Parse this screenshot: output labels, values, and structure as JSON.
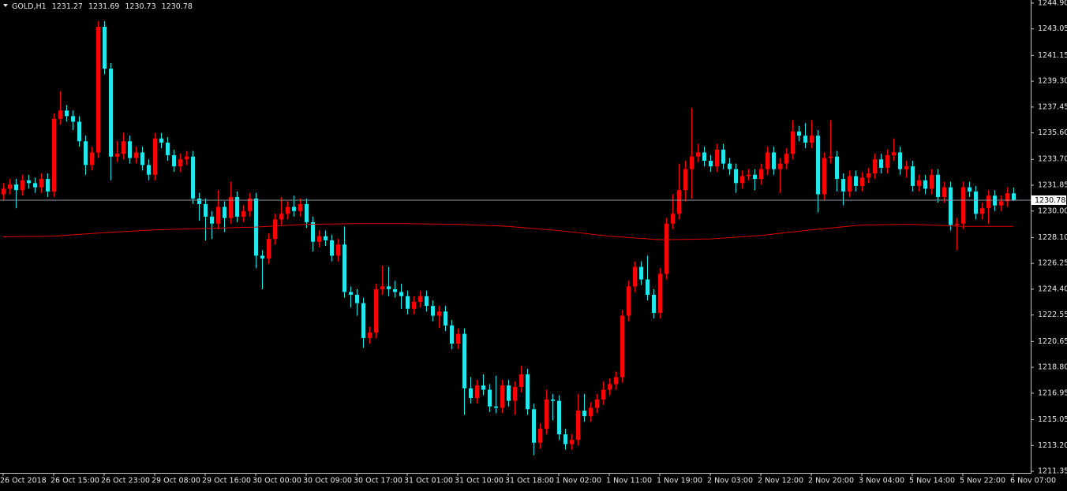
{
  "chart_data": {
    "type": "candlestick",
    "title": "GOLD,H1",
    "up_color": "#ff0000",
    "down_color": "#22e8ec",
    "ylim": [
      1211.24,
      1245.12
    ],
    "yticks": [
      {
        "value": 1244.9,
        "label": "1244.90"
      },
      1243.05,
      1241.15,
      {
        "value": 1239.3,
        "label": "1239.30"
      },
      1237.45,
      {
        "value": 1235.6,
        "label": "1235.60"
      },
      {
        "value": 1233.7,
        "label": "1233.70"
      },
      1231.85,
      {
        "value": 1230.0,
        "label": "1230.00"
      },
      {
        "value": 1228.1,
        "label": "1228.10"
      },
      1226.25,
      {
        "value": 1224.4,
        "label": "1224.40"
      },
      1222.55,
      1220.65,
      {
        "value": 1218.8,
        "label": "1218.80"
      },
      1216.95,
      1215.05,
      {
        "value": 1213.2,
        "label": "1213.20"
      },
      1211.35
    ],
    "categories": [
      "26 Oct 2018",
      null,
      null,
      null,
      null,
      null,
      null,
      null,
      "26 Oct 15:00",
      null,
      null,
      null,
      null,
      null,
      null,
      null,
      "26 Oct 23:00",
      null,
      null,
      null,
      null,
      null,
      null,
      null,
      "29 Oct 08:00",
      null,
      null,
      null,
      null,
      null,
      null,
      null,
      "29 Oct 16:00",
      null,
      null,
      null,
      null,
      null,
      null,
      null,
      "30 Oct 00:00",
      null,
      null,
      null,
      null,
      null,
      null,
      null,
      "30 Oct 09:00",
      null,
      null,
      null,
      null,
      null,
      null,
      null,
      "30 Oct 17:00",
      null,
      null,
      null,
      null,
      null,
      null,
      null,
      "31 Oct 01:00",
      null,
      null,
      null,
      null,
      null,
      null,
      null,
      "31 Oct 10:00",
      null,
      null,
      null,
      null,
      null,
      null,
      null,
      "31 Oct 18:00",
      null,
      null,
      null,
      null,
      null,
      null,
      null,
      "1 Nov 02:00",
      null,
      null,
      null,
      null,
      null,
      null,
      null,
      "1 Nov 11:00",
      null,
      null,
      null,
      null,
      null,
      null,
      null,
      "1 Nov 19:00",
      null,
      null,
      null,
      null,
      null,
      null,
      null,
      "2 Nov 03:00",
      null,
      null,
      null,
      null,
      null,
      null,
      null,
      "2 Nov 12:00",
      null,
      null,
      null,
      null,
      null,
      null,
      null,
      "2 Nov 20:00",
      null,
      null,
      null,
      null,
      null,
      null,
      null,
      "3 Nov 04:00",
      null,
      null,
      null,
      null,
      null,
      null,
      null,
      "5 Nov 14:00",
      null,
      null,
      null,
      null,
      null,
      null,
      null,
      "5 Nov 22:00",
      null,
      null,
      null,
      null,
      null,
      null,
      null,
      "6 Nov 07:00"
    ],
    "candles": [
      [
        1231.2,
        1232.0,
        1230.8,
        1231.6
      ],
      [
        1231.6,
        1232.3,
        1231.2,
        1231.9
      ],
      [
        1231.9,
        1232.3,
        1230.2,
        1231.5
      ],
      [
        1231.5,
        1232.6,
        1231.1,
        1232.2
      ],
      [
        1232.2,
        1232.6,
        1231.6,
        1232.0
      ],
      [
        1232.0,
        1232.4,
        1231.3,
        1231.7
      ],
      [
        1231.7,
        1232.7,
        1231.3,
        1232.3
      ],
      [
        1232.3,
        1232.7,
        1231.0,
        1231.4
      ],
      [
        1231.4,
        1237.0,
        1231.0,
        1236.6
      ],
      [
        1236.6,
        1238.6,
        1236.2,
        1237.2
      ],
      [
        1237.2,
        1237.6,
        1236.4,
        1236.8
      ],
      [
        1236.8,
        1237.2,
        1235.8,
        1236.4
      ],
      [
        1236.4,
        1236.8,
        1234.6,
        1235.0
      ],
      [
        1235.0,
        1235.4,
        1232.6,
        1233.3
      ],
      [
        1233.3,
        1234.6,
        1232.9,
        1234.2
      ],
      [
        1234.2,
        1243.6,
        1233.8,
        1243.2
      ],
      [
        1243.2,
        1243.6,
        1239.8,
        1240.2
      ],
      [
        1240.2,
        1240.6,
        1232.2,
        1233.9
      ],
      [
        1233.9,
        1235.0,
        1233.5,
        1234.1
      ],
      [
        1234.1,
        1235.6,
        1233.7,
        1235.0
      ],
      [
        1235.0,
        1235.4,
        1233.4,
        1233.8
      ],
      [
        1233.8,
        1234.6,
        1233.4,
        1234.2
      ],
      [
        1234.2,
        1234.6,
        1232.9,
        1233.3
      ],
      [
        1233.3,
        1233.7,
        1232.2,
        1232.6
      ],
      [
        1232.6,
        1235.6,
        1232.2,
        1235.2
      ],
      [
        1235.2,
        1235.6,
        1234.5,
        1234.9
      ],
      [
        1234.9,
        1235.3,
        1233.6,
        1234.0
      ],
      [
        1234.0,
        1234.4,
        1232.8,
        1233.2
      ],
      [
        1233.2,
        1234.1,
        1232.8,
        1233.7
      ],
      [
        1233.7,
        1234.3,
        1233.3,
        1233.9
      ],
      [
        1233.9,
        1234.3,
        1230.5,
        1230.9
      ],
      [
        1230.9,
        1231.3,
        1229.3,
        1230.5
      ],
      [
        1230.5,
        1230.9,
        1227.9,
        1229.6
      ],
      [
        1229.6,
        1230.0,
        1228.0,
        1229.1
      ],
      [
        1229.1,
        1231.5,
        1228.7,
        1230.3
      ],
      [
        1230.3,
        1230.7,
        1228.5,
        1229.5
      ],
      [
        1229.5,
        1232.1,
        1229.1,
        1231.0
      ],
      [
        1231.0,
        1231.4,
        1229.2,
        1229.6
      ],
      [
        1229.6,
        1230.4,
        1229.2,
        1230.0
      ],
      [
        1230.0,
        1231.3,
        1229.6,
        1230.9
      ],
      [
        1230.9,
        1231.3,
        1225.9,
        1226.8
      ],
      [
        1226.8,
        1227.2,
        1224.4,
        1226.6
      ],
      [
        1226.6,
        1228.4,
        1226.2,
        1228.0
      ],
      [
        1228.0,
        1229.8,
        1227.6,
        1229.4
      ],
      [
        1229.4,
        1231.0,
        1229.0,
        1229.8
      ],
      [
        1229.8,
        1230.7,
        1229.4,
        1230.3
      ],
      [
        1230.3,
        1231.1,
        1229.6,
        1230.0
      ],
      [
        1230.0,
        1230.9,
        1229.6,
        1230.5
      ],
      [
        1230.5,
        1230.9,
        1228.8,
        1229.2
      ],
      [
        1229.2,
        1229.6,
        1227.1,
        1227.8
      ],
      [
        1227.8,
        1228.6,
        1227.4,
        1228.2
      ],
      [
        1228.2,
        1228.6,
        1227.5,
        1227.9
      ],
      [
        1227.9,
        1228.3,
        1226.4,
        1226.8
      ],
      [
        1226.8,
        1228.0,
        1226.4,
        1227.6
      ],
      [
        1227.6,
        1228.9,
        1223.8,
        1224.2
      ],
      [
        1224.2,
        1224.6,
        1223.1,
        1224.0
      ],
      [
        1224.0,
        1224.4,
        1222.5,
        1223.4
      ],
      [
        1223.4,
        1223.8,
        1220.2,
        1220.9
      ],
      [
        1220.9,
        1221.7,
        1220.5,
        1221.3
      ],
      [
        1221.3,
        1224.8,
        1220.9,
        1224.4
      ],
      [
        1224.4,
        1226.1,
        1224.0,
        1224.6
      ],
      [
        1224.6,
        1226.0,
        1223.9,
        1224.4
      ],
      [
        1224.4,
        1225.0,
        1223.8,
        1224.2
      ],
      [
        1224.2,
        1224.8,
        1223.0,
        1223.9
      ],
      [
        1223.9,
        1224.3,
        1222.6,
        1223.0
      ],
      [
        1223.0,
        1223.9,
        1222.6,
        1223.5
      ],
      [
        1223.5,
        1224.3,
        1223.1,
        1223.9
      ],
      [
        1223.9,
        1224.3,
        1222.8,
        1223.2
      ],
      [
        1223.2,
        1223.6,
        1222.1,
        1222.5
      ],
      [
        1222.5,
        1223.2,
        1221.6,
        1222.8
      ],
      [
        1222.8,
        1223.2,
        1221.4,
        1221.8
      ],
      [
        1221.8,
        1222.2,
        1220.1,
        1220.5
      ],
      [
        1220.5,
        1221.6,
        1220.1,
        1221.2
      ],
      [
        1221.2,
        1221.6,
        1215.4,
        1217.3
      ],
      [
        1217.3,
        1218.1,
        1216.2,
        1216.6
      ],
      [
        1216.6,
        1217.9,
        1216.2,
        1217.5
      ],
      [
        1217.5,
        1218.3,
        1216.8,
        1217.2
      ],
      [
        1217.2,
        1217.6,
        1215.6,
        1216.0
      ],
      [
        1216.0,
        1218.2,
        1215.5,
        1215.9
      ],
      [
        1215.9,
        1217.9,
        1215.5,
        1217.5
      ],
      [
        1217.5,
        1217.9,
        1216.0,
        1216.4
      ],
      [
        1216.4,
        1217.8,
        1215.4,
        1217.4
      ],
      [
        1217.4,
        1218.9,
        1217.0,
        1218.3
      ],
      [
        1218.3,
        1218.7,
        1215.4,
        1215.8
      ],
      [
        1215.8,
        1216.2,
        1212.5,
        1213.4
      ],
      [
        1213.4,
        1214.8,
        1213.0,
        1214.4
      ],
      [
        1214.4,
        1217.2,
        1214.0,
        1216.5
      ],
      [
        1216.5,
        1216.9,
        1215.0,
        1216.4
      ],
      [
        1216.4,
        1216.8,
        1213.6,
        1214.0
      ],
      [
        1214.0,
        1214.4,
        1212.9,
        1213.3
      ],
      [
        1213.3,
        1214.0,
        1212.9,
        1213.6
      ],
      [
        1213.6,
        1216.9,
        1213.2,
        1215.7
      ],
      [
        1215.7,
        1216.9,
        1214.9,
        1215.3
      ],
      [
        1215.3,
        1216.3,
        1214.9,
        1215.9
      ],
      [
        1215.9,
        1216.9,
        1215.5,
        1216.5
      ],
      [
        1216.5,
        1217.8,
        1216.1,
        1217.2
      ],
      [
        1217.2,
        1218.0,
        1216.8,
        1217.6
      ],
      [
        1217.6,
        1218.5,
        1217.2,
        1218.1
      ],
      [
        1218.1,
        1222.9,
        1217.7,
        1222.5
      ],
      [
        1222.5,
        1225.0,
        1222.1,
        1224.6
      ],
      [
        1224.6,
        1226.4,
        1224.2,
        1226.0
      ],
      [
        1226.0,
        1226.4,
        1224.7,
        1225.1
      ],
      [
        1225.1,
        1226.8,
        1223.6,
        1224.0
      ],
      [
        1224.0,
        1224.4,
        1222.3,
        1222.7
      ],
      [
        1222.7,
        1225.9,
        1222.3,
        1225.5
      ],
      [
        1225.5,
        1229.5,
        1225.1,
        1229.1
      ],
      [
        1229.1,
        1231.2,
        1228.7,
        1229.8
      ],
      [
        1229.8,
        1233.4,
        1229.4,
        1231.5
      ],
      [
        1231.5,
        1233.6,
        1230.7,
        1233.0
      ],
      [
        1233.0,
        1237.4,
        1230.9,
        1233.9
      ],
      [
        1233.9,
        1234.8,
        1233.5,
        1234.2
      ],
      [
        1234.2,
        1234.6,
        1233.2,
        1233.6
      ],
      [
        1233.6,
        1234.0,
        1232.8,
        1233.2
      ],
      [
        1233.2,
        1234.8,
        1232.8,
        1234.4
      ],
      [
        1234.4,
        1234.8,
        1233.0,
        1233.4
      ],
      [
        1233.4,
        1233.8,
        1232.6,
        1233.0
      ],
      [
        1233.0,
        1233.4,
        1231.3,
        1232.0
      ],
      [
        1232.0,
        1232.9,
        1231.6,
        1232.5
      ],
      [
        1232.5,
        1233.0,
        1232.2,
        1232.6
      ],
      [
        1232.6,
        1233.0,
        1231.5,
        1232.3
      ],
      [
        1232.3,
        1233.4,
        1231.9,
        1233.0
      ],
      [
        1233.0,
        1234.6,
        1232.6,
        1234.2
      ],
      [
        1234.2,
        1234.6,
        1232.6,
        1233.0
      ],
      [
        1233.0,
        1233.8,
        1231.3,
        1233.4
      ],
      [
        1233.4,
        1234.5,
        1233.0,
        1234.1
      ],
      [
        1234.1,
        1236.5,
        1233.7,
        1235.7
      ],
      [
        1235.7,
        1236.1,
        1235.0,
        1235.4
      ],
      [
        1235.4,
        1236.3,
        1234.5,
        1234.9
      ],
      [
        1234.9,
        1236.5,
        1234.5,
        1235.4
      ],
      [
        1235.4,
        1235.8,
        1229.9,
        1231.2
      ],
      [
        1231.2,
        1234.2,
        1230.8,
        1233.8
      ],
      [
        1233.8,
        1236.5,
        1233.4,
        1233.9
      ],
      [
        1233.9,
        1234.3,
        1231.4,
        1232.3
      ],
      [
        1232.3,
        1232.7,
        1230.4,
        1231.4
      ],
      [
        1231.4,
        1232.9,
        1231.0,
        1232.5
      ],
      [
        1232.5,
        1232.9,
        1231.4,
        1231.8
      ],
      [
        1231.8,
        1232.8,
        1231.4,
        1232.4
      ],
      [
        1232.4,
        1233.1,
        1232.0,
        1232.7
      ],
      [
        1232.7,
        1234.1,
        1232.3,
        1233.7
      ],
      [
        1233.7,
        1234.1,
        1232.7,
        1233.1
      ],
      [
        1233.1,
        1234.4,
        1232.7,
        1234.0
      ],
      [
        1234.0,
        1235.2,
        1233.6,
        1234.2
      ],
      [
        1234.2,
        1234.6,
        1232.6,
        1233.0
      ],
      [
        1233.0,
        1233.6,
        1232.4,
        1233.2
      ],
      [
        1233.2,
        1233.6,
        1231.4,
        1231.8
      ],
      [
        1231.8,
        1232.6,
        1231.4,
        1232.2
      ],
      [
        1232.2,
        1232.6,
        1231.2,
        1231.6
      ],
      [
        1231.6,
        1233.0,
        1231.2,
        1232.6
      ],
      [
        1232.6,
        1233.0,
        1230.6,
        1231.0
      ],
      [
        1231.0,
        1232.1,
        1230.6,
        1231.7
      ],
      [
        1231.7,
        1232.1,
        1228.6,
        1229.0
      ],
      [
        1229.0,
        1229.5,
        1227.2,
        1229.1
      ],
      [
        1229.1,
        1232.1,
        1228.7,
        1231.7
      ],
      [
        1231.7,
        1232.1,
        1231.0,
        1231.4
      ],
      [
        1231.4,
        1231.8,
        1229.4,
        1229.8
      ],
      [
        1229.8,
        1230.6,
        1229.4,
        1230.2
      ],
      [
        1230.2,
        1231.5,
        1229.1,
        1231.1
      ],
      [
        1231.1,
        1231.5,
        1230.0,
        1230.4
      ],
      [
        1230.4,
        1231.1,
        1230.0,
        1230.7
      ],
      [
        1230.7,
        1231.7,
        1230.3,
        1231.27
      ],
      [
        1231.27,
        1231.69,
        1230.73,
        1230.78
      ]
    ],
    "moving_average": {
      "color": "#e00000",
      "x": [
        0,
        8,
        16,
        24,
        32,
        40,
        48,
        56,
        64,
        72,
        80,
        88,
        96,
        104,
        112,
        120,
        128,
        136,
        144,
        152,
        160
      ],
      "values": [
        1228.15,
        1228.2,
        1228.45,
        1228.65,
        1228.75,
        1228.85,
        1229.05,
        1229.1,
        1229.1,
        1229.05,
        1228.9,
        1228.6,
        1228.2,
        1227.95,
        1228.0,
        1228.25,
        1228.65,
        1229.0,
        1229.05,
        1228.9,
        1228.9
      ]
    }
  }
}
